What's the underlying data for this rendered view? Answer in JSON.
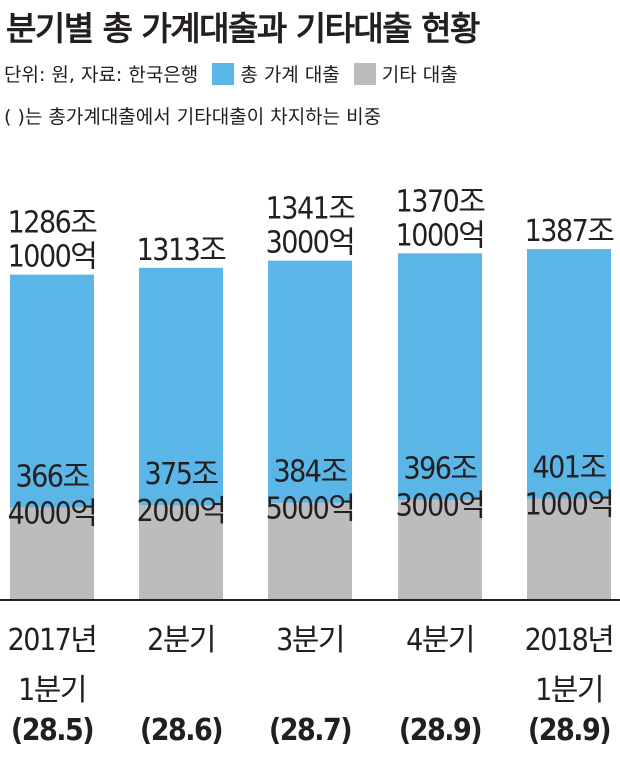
{
  "title": "분기별 총 가계대출과 기타대출 현황",
  "unit_source": "단위: 원, 자료: 한국은행",
  "note": "( )는 총가계대출에서 기타대출이 차지하는 비중",
  "colors": {
    "total": "#5ab6e6",
    "other": "#bcbcbe",
    "text": "#231f20"
  },
  "chart_data": {
    "type": "bar",
    "stacked_overlap": true,
    "categories": [
      "2017년 1분기",
      "2분기",
      "3분기",
      "4분기",
      "2018년 1분기"
    ],
    "category_lines": [
      [
        "2017년",
        "1분기"
      ],
      [
        "2분기"
      ],
      [
        "3분기"
      ],
      [
        "4분기"
      ],
      [
        "2018년",
        "1분기"
      ]
    ],
    "series": [
      {
        "name": "총 가계 대출",
        "unit": "조원",
        "values": [
          1286.1,
          1313,
          1341.3,
          1370.1,
          1387
        ]
      },
      {
        "name": "기타 대출",
        "unit": "조원",
        "values": [
          366.4,
          375.2,
          384.5,
          396.3,
          401.1
        ]
      }
    ],
    "total_labels": [
      [
        "1286조",
        "1000억"
      ],
      [
        "1313조"
      ],
      [
        "1341조",
        "3000억"
      ],
      [
        "1370조",
        "1000억"
      ],
      [
        "1387조"
      ]
    ],
    "other_labels": [
      [
        "366조",
        "4000억"
      ],
      [
        "375조",
        "2000억"
      ],
      [
        "384조",
        "5000억"
      ],
      [
        "396조",
        "3000억"
      ],
      [
        "401조",
        "1000억"
      ]
    ],
    "share_labels": [
      "(28.5)",
      "(28.6)",
      "(28.7)",
      "(28.9)",
      "(28.9)"
    ],
    "share_values": [
      28.5,
      28.6,
      28.7,
      28.9,
      28.9
    ],
    "legend_placement": "top",
    "grid": false
  }
}
